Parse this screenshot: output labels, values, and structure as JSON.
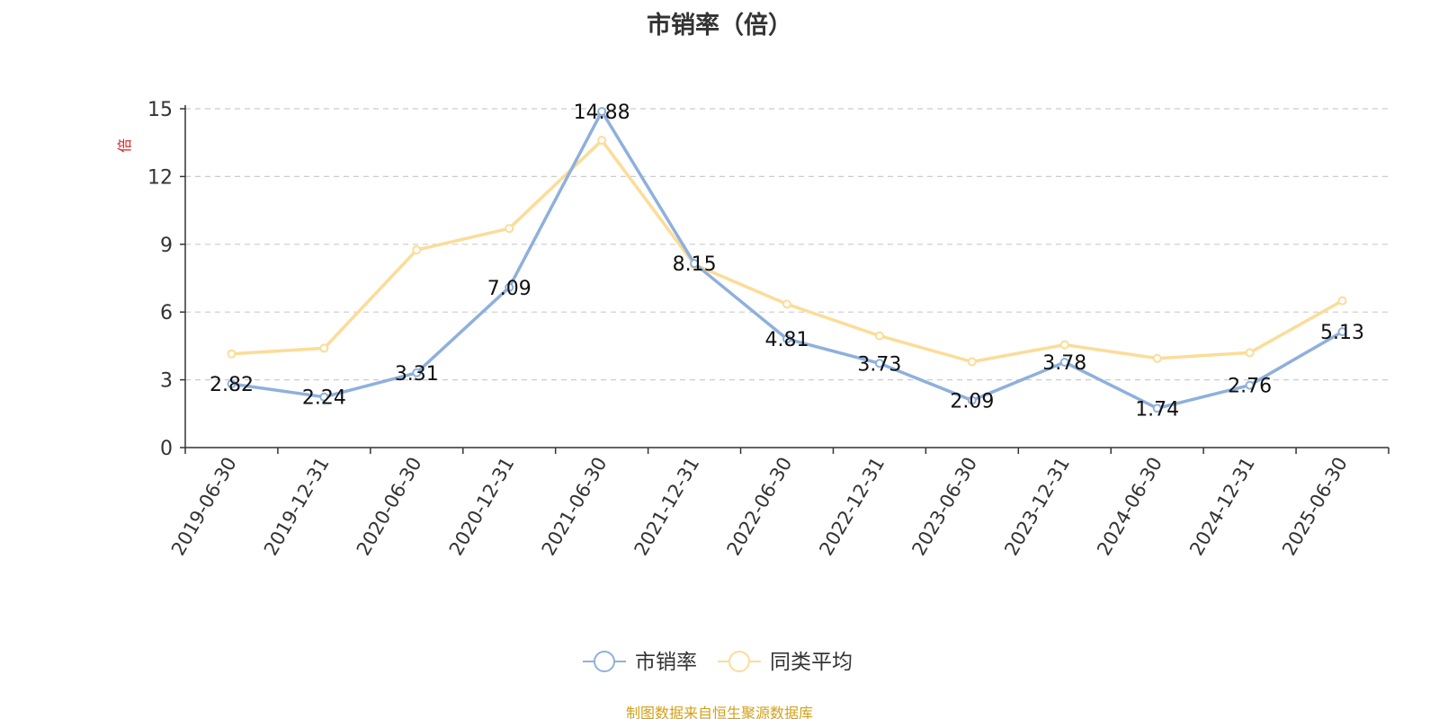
{
  "title": "市销率（倍）",
  "source_note": "制图数据来自恒生聚源数据库",
  "colors": {
    "series_1": "#8eb0dc",
    "series_2": "#fcdc97",
    "axis": "#333333",
    "grid": "#cccccc",
    "unit_label": "#e02020",
    "source_note": "#d4a017",
    "text": "#333333"
  },
  "chart_data": {
    "type": "line",
    "x": [
      "2019-06-30",
      "2019-12-31",
      "2020-06-30",
      "2020-12-31",
      "2021-06-30",
      "2021-12-31",
      "2022-06-30",
      "2022-12-31",
      "2023-06-30",
      "2023-12-31",
      "2024-06-30",
      "2024-12-31",
      "2025-06-30"
    ],
    "ylabel": "倍",
    "ylim": [
      0,
      15
    ],
    "yticks": [
      0,
      3,
      6,
      9,
      12,
      15
    ],
    "grid": true,
    "legend_position": "bottom-center",
    "series": [
      {
        "name": "市销率",
        "values": [
          2.82,
          2.24,
          3.31,
          7.09,
          14.88,
          8.15,
          4.81,
          3.73,
          2.09,
          3.78,
          1.74,
          2.76,
          5.13
        ],
        "labels": [
          "2.82",
          "2.24",
          "3.31",
          "7.09",
          "14.88",
          "8.15",
          "4.81",
          "3.73",
          "2.09",
          "3.78",
          "1.74",
          "2.76",
          "5.13"
        ]
      },
      {
        "name": "同类平均",
        "values": [
          4.15,
          4.4,
          8.75,
          9.7,
          13.6,
          8.1,
          6.35,
          4.95,
          3.8,
          4.55,
          3.95,
          4.2,
          6.5
        ]
      }
    ]
  }
}
